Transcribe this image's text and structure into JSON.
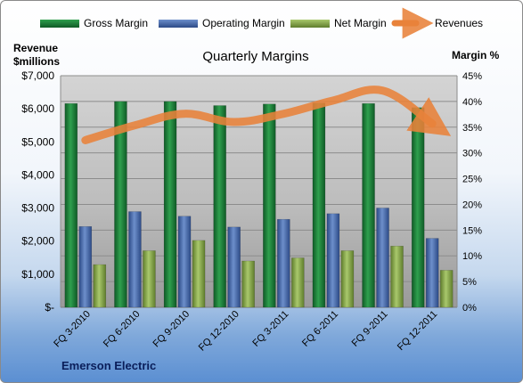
{
  "chart_data": {
    "type": "bar",
    "title": "Quarterly Margins",
    "company": "Emerson Electric",
    "ylabel_left": [
      "Revenue",
      "$millions"
    ],
    "ylabel_right": "Margin %",
    "categories": [
      "FQ 3-2010",
      "FQ 6-2010",
      "FQ 9-2010",
      "FQ 12-2010",
      "FQ 3-2011",
      "FQ 6-2011",
      "FQ 9-2011",
      "FQ 12-2011"
    ],
    "ylim_left": [
      0,
      7000
    ],
    "ylim_right": [
      0,
      45
    ],
    "yticks_left": [
      "$-",
      "$1,000",
      "$2,000",
      "$3,000",
      "$4,000",
      "$5,000",
      "$6,000",
      "$7,000"
    ],
    "yticks_right": [
      "0%",
      "5%",
      "10%",
      "15%",
      "20%",
      "25%",
      "30%",
      "35%",
      "40%",
      "45%"
    ],
    "grid": true,
    "legend_position": "top",
    "series": [
      {
        "name": "Gross Margin",
        "type": "bar",
        "axis": "right",
        "color": "#1e7a3c",
        "values": [
          39.6,
          40.0,
          40.0,
          39.2,
          39.5,
          39.7,
          39.6,
          38.8
        ]
      },
      {
        "name": "Operating Margin",
        "type": "bar",
        "axis": "right",
        "color": "#4a6fb0",
        "values": [
          15.7,
          18.6,
          17.7,
          15.6,
          17.1,
          18.2,
          19.3,
          13.4
        ]
      },
      {
        "name": "Net Margin",
        "type": "bar",
        "axis": "right",
        "color": "#8fb155",
        "values": [
          8.3,
          11.0,
          13.0,
          9.0,
          9.6,
          11.0,
          11.9,
          7.2
        ]
      },
      {
        "name": "Revenues",
        "type": "line",
        "axis": "left",
        "color": "#e8823a",
        "values": [
          5050,
          5500,
          5850,
          5600,
          5850,
          6250,
          6550,
          5550
        ]
      }
    ]
  }
}
